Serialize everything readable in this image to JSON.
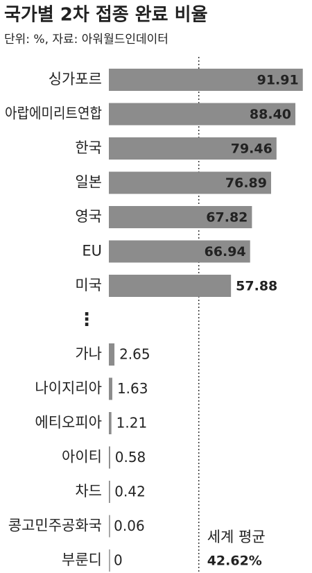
{
  "chart_data": {
    "type": "bar",
    "orientation": "horizontal",
    "title": "국가별 2차 접종 완료 비율",
    "subtitle": "단위: %, 자료: 아워월드인데이터",
    "categories": [
      "싱가포르",
      "아랍에미리트연합",
      "한국",
      "일본",
      "영국",
      "EU",
      "미국",
      "⋮",
      "가나",
      "나이지리아",
      "에티오피아",
      "아이티",
      "차드",
      "콩고민주공화국",
      "부룬디"
    ],
    "values": [
      91.91,
      88.4,
      79.46,
      76.89,
      67.82,
      66.94,
      57.88,
      null,
      2.65,
      1.63,
      1.21,
      0.58,
      0.42,
      0.06,
      0
    ],
    "value_labels": [
      "91.91",
      "88.40",
      "79.46",
      "76.89",
      "67.82",
      "66.94",
      "57.88",
      null,
      "2.65",
      "1.63",
      "1.21",
      "0.58",
      "0.42",
      "0.06",
      "0"
    ],
    "color": "#8c8c8c",
    "xlim": [
      0,
      92
    ],
    "reference": {
      "label": "세계 평균",
      "value": 42.62,
      "value_label": "42.62%"
    }
  }
}
